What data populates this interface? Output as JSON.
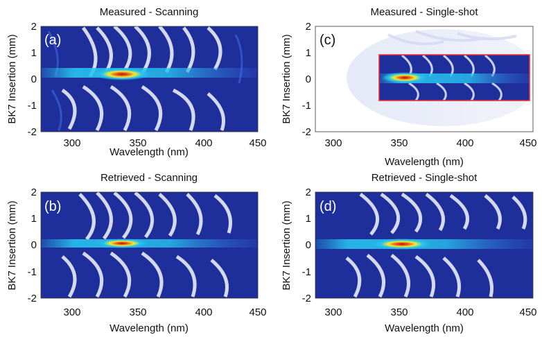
{
  "chart_data": [
    {
      "type": "heatmap",
      "panel_label": "(a)",
      "title": "Measured - Scanning",
      "xlabel": "Wavelength (nm)",
      "ylabel": "BK7 Insertion (mm)",
      "xlim": [
        285,
        450
      ],
      "ylim": [
        -2,
        2
      ],
      "xticks": [
        "300",
        "350",
        "400",
        "450"
      ],
      "yticks": [
        "2",
        "1",
        "0",
        "-1",
        "-2"
      ],
      "peak": {
        "x": 348,
        "y": 0.1
      },
      "colormap": "jet-on-white"
    },
    {
      "type": "heatmap",
      "panel_label": "(b)",
      "title": "Retrieved - Scanning",
      "xlabel": "Wavelength (nm)",
      "ylabel": "BK7 Insertion (mm)",
      "xlim": [
        285,
        450
      ],
      "ylim": [
        -2,
        2
      ],
      "xticks": [
        "300",
        "350",
        "400",
        "450"
      ],
      "yticks": [
        "2",
        "1",
        "0",
        "-1",
        "-2"
      ],
      "peak": {
        "x": 348,
        "y": 0.05
      },
      "colormap": "jet-on-white"
    },
    {
      "type": "heatmap",
      "panel_label": "(c)",
      "title": "Measured - Single-shot",
      "xlabel": "Wavelength (nm)",
      "ylabel": "BK7 Insertion (mm)",
      "xlim": [
        285,
        450
      ],
      "ylim": [
        -2,
        2
      ],
      "xticks": [
        "300",
        "350",
        "400",
        "450"
      ],
      "yticks": [
        "2",
        "1",
        "0",
        "-1",
        "-2"
      ],
      "peak": {
        "x": 350,
        "y": 0.0
      },
      "highlight_box": {
        "x": [
          333,
          446
        ],
        "y": [
          -0.85,
          0.9
        ],
        "color": "#e8312f"
      },
      "colormap": "jet-on-white"
    },
    {
      "type": "heatmap",
      "panel_label": "(d)",
      "title": "Retrieved - Single-shot",
      "xlabel": "Wavelength (nm)",
      "ylabel": "BK7 Insertion (mm)",
      "xlim": [
        285,
        450
      ],
      "ylim": [
        -2,
        2
      ],
      "xticks": [
        "300",
        "350",
        "400",
        "450"
      ],
      "yticks": [
        "2",
        "1",
        "0",
        "-1",
        "-2"
      ],
      "peak": {
        "x": 352,
        "y": 0.0
      },
      "colormap": "jet-on-white"
    }
  ],
  "colors": {
    "dark_blue": "#1e2f9c",
    "mid_blue": "#3a62d8",
    "cyan": "#27c3ef",
    "yellow": "#f2ec2a",
    "red": "#d7190f",
    "box": "#e8312f"
  }
}
